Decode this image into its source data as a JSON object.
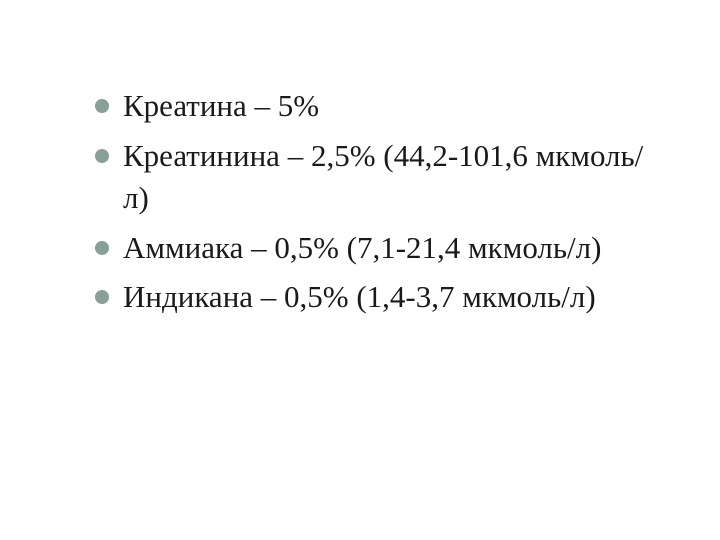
{
  "bullet_color": "#88a097",
  "text_color": "#1a1a1a",
  "background_color": "#ffffff",
  "font_size": 31,
  "items": [
    {
      "text": "Креатина – 5%"
    },
    {
      "text": "Креатинина – 2,5% (44,2-101,6 мкмоль/л)"
    },
    {
      "text": "Аммиака – 0,5% (7,1-21,4 мкмоль/л)"
    },
    {
      "text": "Индикана – 0,5% (1,4-3,7 мкмоль/л)"
    }
  ]
}
